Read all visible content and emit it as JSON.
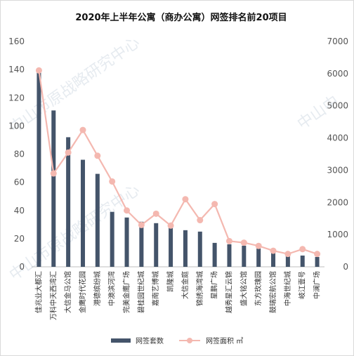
{
  "chart_data": {
    "type": "bar",
    "title": "2020年上半年公寓（商办公寓）网签排名前20项目",
    "categories": [
      "佳兆业大都汇",
      "万科中天西湾汇",
      "大信金马公馆",
      "金鹰时代花园",
      "港德缤纷城",
      "中澳滨河湾",
      "完美金鹰广场",
      "碧桂园世纪城",
      "嘉南艺博城",
      "凯隆城",
      "大信金庭",
      "锦绣海湾城",
      "星鹏广场",
      "越秀星汇云锦",
      "盛大铭公馆",
      "东方玫瑰园",
      "鼓瑞宏航公馆",
      "中海世纪城",
      "岐江壹号",
      "中澜广场"
    ],
    "series": [
      {
        "name": "网签套数",
        "axis": "left",
        "kind": "bar",
        "color": "#44546a",
        "values": [
          140,
          111,
          92,
          76,
          66,
          39,
          35,
          32,
          31,
          28,
          26,
          25,
          17,
          16,
          15,
          13,
          10,
          8,
          8,
          7
        ]
      },
      {
        "name": "网签面积 ㎡",
        "axis": "right",
        "kind": "line",
        "color": "#f4b8b0",
        "values": [
          6100,
          2900,
          3550,
          4250,
          3450,
          2650,
          1750,
          1300,
          1650,
          1280,
          2100,
          1450,
          1950,
          800,
          750,
          650,
          500,
          400,
          550,
          400
        ]
      }
    ],
    "ylim_left": [
      0,
      160
    ],
    "yticks_left": [
      0,
      20,
      40,
      60,
      80,
      100,
      120,
      140,
      160
    ],
    "ylim_right": [
      0,
      7000
    ],
    "yticks_right": [
      0,
      1000,
      2000,
      3000,
      4000,
      5000,
      6000,
      7000
    ],
    "grid": false,
    "legend_position": "bottom"
  },
  "legend": {
    "bar_label": "网签套数",
    "line_label": "网签面积 ㎡"
  },
  "watermark": {
    "text_1": "中山市原战略研究中心",
    "text_2": "中山市原战略研究中心",
    "text_3": "中山中"
  }
}
